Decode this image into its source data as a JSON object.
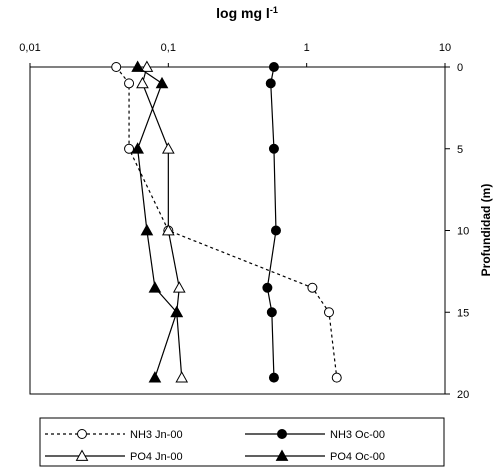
{
  "chart_data": {
    "type": "line",
    "title": "log mg l",
    "title_superscript": "-1",
    "xlabel": "log mg l-1",
    "ylabel": "Profundidad (m)",
    "x_scale": "log",
    "xlim": [
      0.01,
      10
    ],
    "ylim": [
      0,
      20
    ],
    "y_inverted": true,
    "x_ticks": [
      {
        "value": 0.01,
        "label": "0,01"
      },
      {
        "value": 0.1,
        "label": "0,1"
      },
      {
        "value": 1,
        "label": "1"
      },
      {
        "value": 10,
        "label": "10"
      }
    ],
    "y_ticks": [
      {
        "value": 0,
        "label": "0"
      },
      {
        "value": 5,
        "label": "5"
      },
      {
        "value": 10,
        "label": "10"
      },
      {
        "value": 15,
        "label": "15"
      },
      {
        "value": 20,
        "label": "20"
      }
    ],
    "grid": false,
    "legend_position": "bottom",
    "series": [
      {
        "name": "NH3 Jn-00",
        "marker": "open-circle",
        "line": "dashed",
        "x": [
          0.042,
          0.052,
          0.052,
          0.1,
          1.1,
          1.45,
          1.65
        ],
        "y": [
          0,
          1,
          5,
          10,
          13.5,
          15,
          19
        ]
      },
      {
        "name": "NH3 Oc-00",
        "marker": "filled-circle",
        "line": "solid",
        "x": [
          0.58,
          0.55,
          0.58,
          0.6,
          0.52,
          0.56,
          0.58
        ],
        "y": [
          0,
          1,
          5,
          10,
          13.5,
          15,
          19
        ]
      },
      {
        "name": "PO4 Jn-00",
        "marker": "open-triangle",
        "line": "solid",
        "x": [
          0.07,
          0.065,
          0.1,
          0.1,
          0.12,
          0.115,
          0.125
        ],
        "y": [
          0,
          1,
          5,
          10,
          13.5,
          15,
          19
        ]
      },
      {
        "name": "PO4 Oc-00",
        "marker": "filled-triangle",
        "line": "solid",
        "x": [
          0.06,
          0.09,
          0.06,
          0.07,
          0.08,
          0.115,
          0.08
        ],
        "y": [
          0,
          1,
          5,
          10,
          13.5,
          15,
          19
        ]
      }
    ]
  }
}
